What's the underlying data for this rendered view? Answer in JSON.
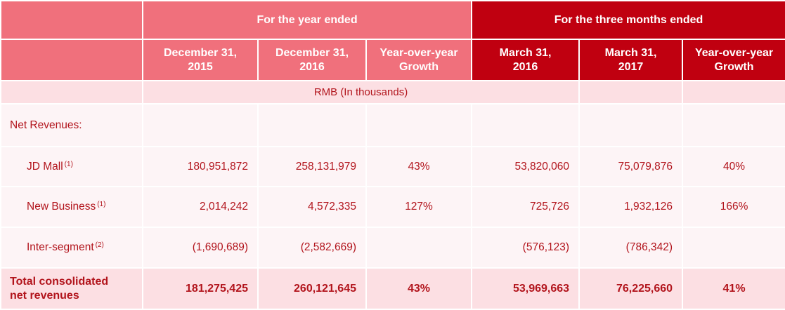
{
  "header": {
    "group_year": "For the year ended",
    "group_quarter": "For the three months ended",
    "columns": [
      "December 31,\n2015",
      "December 31,\n2016",
      "Year-over-year\nGrowth",
      "March 31,\n2016",
      "March 31,\n2017",
      "Year-over-year\nGrowth"
    ]
  },
  "units": "RMB (In thousands)",
  "section_label": "Net Revenues:",
  "rows": [
    {
      "label": "JD Mall",
      "note": "(1)",
      "values": [
        "180,951,872",
        "258,131,979",
        "43%",
        "53,820,060",
        "75,079,876",
        "40%"
      ]
    },
    {
      "label": "New Business",
      "note": "(1)",
      "values": [
        "2,014,242",
        "4,572,335",
        "127%",
        "725,726",
        "1,932,126",
        "166%"
      ]
    },
    {
      "label": "Inter-segment",
      "note": "(2)",
      "values": [
        "(1,690,689)",
        "(2,582,669)",
        "",
        "(576,123)",
        "(786,342)",
        ""
      ]
    }
  ],
  "total": {
    "label": "Total consolidated\nnet revenues",
    "values": [
      "181,275,425",
      "260,121,645",
      "43%",
      "53,969,663",
      "76,225,660",
      "41%"
    ]
  },
  "colors": {
    "header_pink": "#f0707c",
    "header_red": "#c00010",
    "text_red": "#b2141c",
    "band_light": "#fcdfe3",
    "row_bg": "#fdf4f6"
  }
}
